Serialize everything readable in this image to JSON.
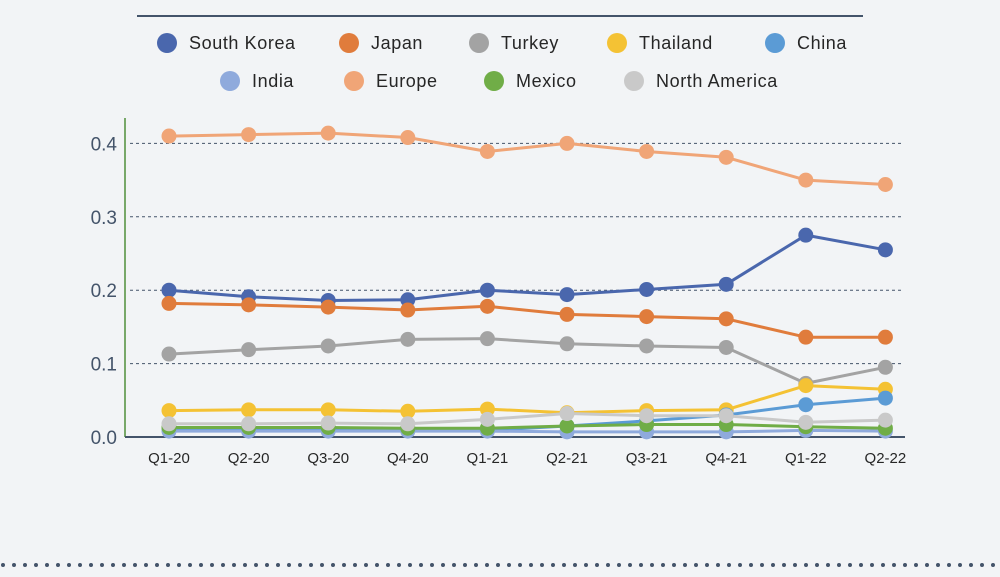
{
  "chart_data": {
    "type": "line",
    "title": "",
    "xlabel": "",
    "ylabel": "",
    "categories": [
      "Q1-20",
      "Q2-20",
      "Q3-20",
      "Q4-20",
      "Q1-21",
      "Q2-21",
      "Q3-21",
      "Q4-21",
      "Q1-22",
      "Q2-22"
    ],
    "ylim": [
      0,
      0.4
    ],
    "yticks": [
      "0.0",
      "0.1",
      "0.2",
      "0.3",
      "0.4"
    ],
    "grid": "horizontal dashed",
    "legend_position": "top",
    "series": [
      {
        "name": "South Korea",
        "color": "#4a67ad",
        "values": [
          0.2,
          0.191,
          0.186,
          0.187,
          0.2,
          0.194,
          0.201,
          0.208,
          0.275,
          0.255
        ]
      },
      {
        "name": "Japan",
        "color": "#e07c3c",
        "values": [
          0.182,
          0.18,
          0.177,
          0.173,
          0.178,
          0.167,
          0.164,
          0.161,
          0.136,
          0.136
        ]
      },
      {
        "name": "Turkey",
        "color": "#a3a3a3",
        "values": [
          0.113,
          0.119,
          0.124,
          0.133,
          0.134,
          0.127,
          0.124,
          0.122,
          0.073,
          0.095
        ]
      },
      {
        "name": "Thailand",
        "color": "#f4c234",
        "values": [
          0.036,
          0.037,
          0.037,
          0.035,
          0.038,
          0.033,
          0.036,
          0.037,
          0.07,
          0.065
        ]
      },
      {
        "name": "China",
        "color": "#5b9bd5",
        "values": [
          0.01,
          0.011,
          0.011,
          0.01,
          0.009,
          0.015,
          0.022,
          0.03,
          0.044,
          0.053
        ]
      },
      {
        "name": "India",
        "color": "#8faadc",
        "values": [
          0.008,
          0.008,
          0.008,
          0.008,
          0.008,
          0.007,
          0.007,
          0.007,
          0.009,
          0.008
        ]
      },
      {
        "name": "Europe",
        "color": "#f0a577",
        "values": [
          0.41,
          0.412,
          0.414,
          0.408,
          0.389,
          0.4,
          0.389,
          0.381,
          0.35,
          0.344
        ]
      },
      {
        "name": "Mexico",
        "color": "#70ad47",
        "values": [
          0.013,
          0.013,
          0.013,
          0.012,
          0.012,
          0.015,
          0.017,
          0.017,
          0.014,
          0.012
        ]
      },
      {
        "name": "North America",
        "color": "#c9c9c9",
        "values": [
          0.018,
          0.018,
          0.019,
          0.018,
          0.024,
          0.032,
          0.029,
          0.029,
          0.02,
          0.023
        ]
      }
    ]
  }
}
